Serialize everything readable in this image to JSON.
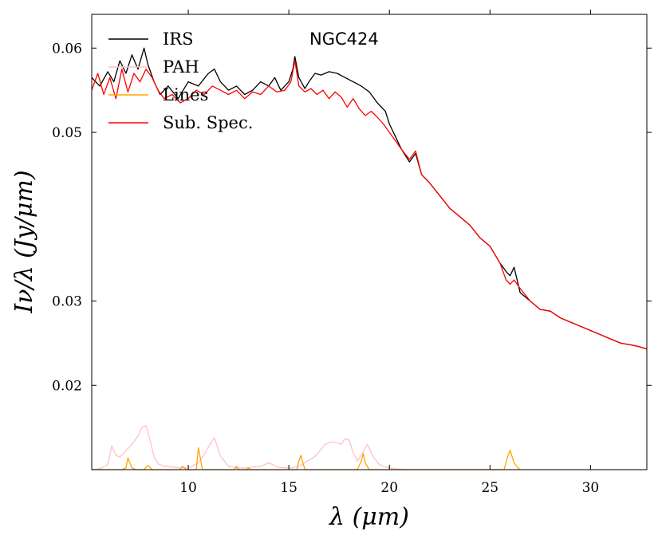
{
  "chart_data": {
    "type": "line",
    "title": "",
    "annotation": "NGC424",
    "xlabel": "λ (μm)",
    "ylabel": "Iν/λ (Jy/μm)",
    "xlim": [
      5.2,
      32.8
    ],
    "ylim": [
      0.01,
      0.064
    ],
    "xticks": [
      10,
      15,
      20,
      25,
      30
    ],
    "xtick_labels": [
      "10",
      "15",
      "20",
      "25",
      "30"
    ],
    "yticks": [
      0.02,
      0.03,
      0.05,
      0.06
    ],
    "ytick_labels": [
      "0.02",
      "0.03",
      "0.05",
      "0.06"
    ],
    "legend_position": "top-left",
    "series": [
      {
        "name": "IRS",
        "color": "#000000",
        "x": [
          5.2,
          5.6,
          6.0,
          6.3,
          6.6,
          6.9,
          7.2,
          7.5,
          7.8,
          8.0,
          8.3,
          8.6,
          9.0,
          9.5,
          10.0,
          10.5,
          11.0,
          11.3,
          11.6,
          12.0,
          12.4,
          12.8,
          13.2,
          13.6,
          14.0,
          14.3,
          14.6,
          15.0,
          15.2,
          15.3,
          15.5,
          15.8,
          16.0,
          16.3,
          16.6,
          17.0,
          17.4,
          17.8,
          18.2,
          18.6,
          19.0,
          19.4,
          19.8,
          20.0,
          20.3,
          20.6,
          21.0,
          21.3,
          21.6,
          22.0,
          22.5,
          23.0,
          23.5,
          24.0,
          24.5,
          25.0,
          25.5,
          25.8,
          26.0,
          26.2,
          26.5,
          27.0,
          27.5,
          28.0,
          28.5,
          29.0,
          29.5,
          30.0,
          30.5,
          31.0,
          31.5,
          32.0,
          32.4,
          32.8
        ],
        "y": [
          0.0565,
          0.0555,
          0.0572,
          0.056,
          0.0585,
          0.057,
          0.0592,
          0.0575,
          0.06,
          0.058,
          0.056,
          0.0545,
          0.0555,
          0.054,
          0.056,
          0.0555,
          0.057,
          0.0575,
          0.056,
          0.055,
          0.0555,
          0.0545,
          0.055,
          0.056,
          0.0555,
          0.0565,
          0.055,
          0.056,
          0.0575,
          0.059,
          0.0565,
          0.0552,
          0.056,
          0.057,
          0.0568,
          0.0572,
          0.057,
          0.0565,
          0.056,
          0.0555,
          0.0548,
          0.0535,
          0.0525,
          0.051,
          0.0495,
          0.048,
          0.0465,
          0.0475,
          0.045,
          0.044,
          0.0425,
          0.041,
          0.04,
          0.039,
          0.0375,
          0.0365,
          0.0345,
          0.0335,
          0.033,
          0.034,
          0.031,
          0.03,
          0.029,
          0.0288,
          0.028,
          0.0275,
          0.027,
          0.0265,
          0.026,
          0.0255,
          0.025,
          0.0248,
          0.0246,
          0.0243
        ]
      },
      {
        "name": "PAH",
        "color": "#ffc0cb",
        "x": [
          5.2,
          5.6,
          6.0,
          6.2,
          6.4,
          6.6,
          6.8,
          7.0,
          7.2,
          7.5,
          7.7,
          7.9,
          8.1,
          8.3,
          8.5,
          8.8,
          9.2,
          9.6,
          10.0,
          10.5,
          10.8,
          11.0,
          11.3,
          11.6,
          12.0,
          12.4,
          12.8,
          13.2,
          13.6,
          14.0,
          14.2,
          14.4,
          14.8,
          15.2,
          15.6,
          15.9,
          16.2,
          16.4,
          16.6,
          16.8,
          17.0,
          17.2,
          17.4,
          17.6,
          17.8,
          18.0,
          18.2,
          18.4,
          18.6,
          18.9,
          19.2,
          19.5,
          19.8,
          20.2,
          21.0,
          22.0,
          24.0,
          26.0,
          28.0,
          30.0,
          32.8
        ],
        "y": [
          0.01,
          0.0101,
          0.0106,
          0.0128,
          0.0117,
          0.0115,
          0.012,
          0.0125,
          0.013,
          0.014,
          0.015,
          0.0152,
          0.0135,
          0.0115,
          0.0107,
          0.0104,
          0.0103,
          0.0102,
          0.0102,
          0.0108,
          0.0118,
          0.0127,
          0.0138,
          0.0116,
          0.0104,
          0.0102,
          0.0102,
          0.0103,
          0.0104,
          0.0108,
          0.0106,
          0.0103,
          0.0102,
          0.0102,
          0.0105,
          0.011,
          0.0114,
          0.0118,
          0.0124,
          0.013,
          0.0132,
          0.0133,
          0.0132,
          0.013,
          0.0137,
          0.0135,
          0.012,
          0.011,
          0.0117,
          0.013,
          0.0115,
          0.0106,
          0.0103,
          0.0101,
          0.01,
          0.01,
          0.01,
          0.01,
          0.01,
          0.01,
          0.01
        ]
      },
      {
        "name": "Lines",
        "color": "#ffa500",
        "x": [
          5.2,
          6.7,
          6.9,
          7.0,
          7.2,
          7.4,
          7.8,
          8.0,
          8.2,
          9.6,
          9.7,
          9.9,
          10.4,
          10.5,
          10.6,
          10.7,
          12.3,
          12.4,
          12.5,
          12.6,
          12.9,
          13.0,
          13.1,
          15.4,
          15.5,
          15.6,
          15.7,
          15.8,
          18.4,
          18.6,
          18.7,
          18.8,
          19.0,
          25.7,
          25.9,
          26.0,
          26.2,
          26.4,
          26.5
        ],
        "y": [
          0.01,
          0.01,
          0.0102,
          0.0114,
          0.0102,
          0.01,
          0.01,
          0.0105,
          0.01,
          0.01,
          0.0104,
          0.01,
          0.01,
          0.0126,
          0.0114,
          0.01,
          0.01,
          0.0104,
          0.01,
          0.01,
          0.01,
          0.0102,
          0.01,
          0.01,
          0.011,
          0.0117,
          0.0108,
          0.01,
          0.01,
          0.011,
          0.0119,
          0.0108,
          0.01,
          0.01,
          0.0117,
          0.0123,
          0.0108,
          0.0102,
          0.01
        ]
      },
      {
        "name": "Sub. Spec.",
        "color": "#ff0000",
        "x": [
          5.2,
          5.5,
          5.8,
          6.1,
          6.4,
          6.7,
          7.0,
          7.3,
          7.6,
          7.9,
          8.2,
          8.5,
          8.8,
          9.2,
          9.6,
          10.0,
          10.4,
          10.8,
          11.2,
          11.6,
          12.0,
          12.4,
          12.8,
          13.2,
          13.6,
          14.0,
          14.4,
          14.8,
          15.1,
          15.3,
          15.5,
          15.8,
          16.1,
          16.4,
          16.7,
          17.0,
          17.3,
          17.6,
          17.9,
          18.2,
          18.5,
          18.8,
          19.1,
          19.4,
          19.7,
          20.0,
          20.3,
          20.6,
          21.0,
          21.3,
          21.6,
          22.0,
          22.5,
          23.0,
          23.5,
          24.0,
          24.5,
          25.0,
          25.5,
          25.8,
          26.0,
          26.2,
          26.5,
          27.0,
          27.5,
          28.0,
          28.5,
          29.0,
          29.5,
          30.0,
          30.5,
          31.0,
          31.5,
          32.0,
          32.4,
          32.8
        ],
        "y": [
          0.055,
          0.057,
          0.0545,
          0.0565,
          0.054,
          0.0575,
          0.0548,
          0.057,
          0.056,
          0.0575,
          0.0565,
          0.055,
          0.054,
          0.0545,
          0.0535,
          0.054,
          0.055,
          0.0545,
          0.0555,
          0.055,
          0.0545,
          0.055,
          0.054,
          0.0548,
          0.0545,
          0.0555,
          0.0548,
          0.055,
          0.056,
          0.0585,
          0.0555,
          0.0548,
          0.0552,
          0.0545,
          0.055,
          0.054,
          0.0548,
          0.0542,
          0.053,
          0.054,
          0.0528,
          0.052,
          0.0525,
          0.0518,
          0.051,
          0.05,
          0.049,
          0.048,
          0.0468,
          0.0478,
          0.045,
          0.044,
          0.0425,
          0.041,
          0.04,
          0.039,
          0.0375,
          0.0365,
          0.0345,
          0.0325,
          0.032,
          0.0325,
          0.0315,
          0.03,
          0.029,
          0.0288,
          0.028,
          0.0275,
          0.027,
          0.0265,
          0.026,
          0.0255,
          0.025,
          0.0248,
          0.0246,
          0.0243
        ]
      }
    ]
  }
}
